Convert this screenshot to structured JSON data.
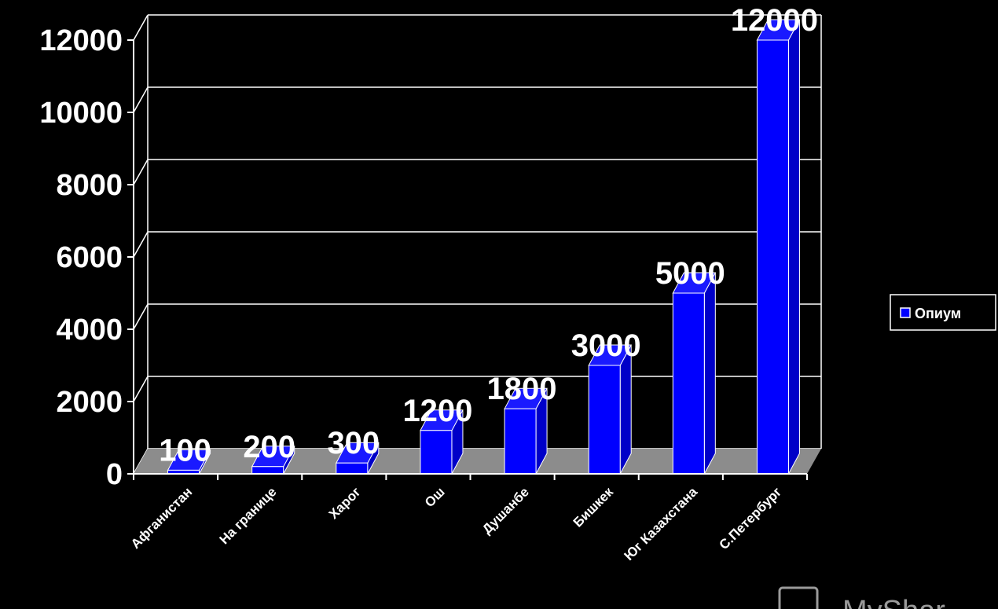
{
  "chart_data": {
    "type": "bar",
    "categories": [
      "Афганистан",
      "На границе",
      "Харог",
      "Ош",
      "Душанбе",
      "Бишкек",
      "Юг Казахстана",
      "С.Петербург"
    ],
    "series": [
      {
        "name": "Опиум",
        "values": [
          100,
          200,
          300,
          1200,
          1800,
          3000,
          5000,
          12000
        ]
      }
    ],
    "data_labels": [
      "100",
      "200",
      "300",
      "1200",
      "1800",
      "3000",
      "5000",
      "12000"
    ],
    "y_ticks": [
      "0",
      "2000",
      "4000",
      "6000",
      "8000",
      "10000",
      "12000"
    ],
    "ylim": [
      0,
      12000
    ],
    "grid": true,
    "legend_position": "right",
    "style": "3d-column",
    "colors": {
      "background": "#000000",
      "bar_front": "#0000ff",
      "bar_side": "#0000c8",
      "bar_top": "#1a1aff",
      "floor": "#8c8c8c",
      "grid": "#ffffff",
      "text": "#ffffff"
    }
  },
  "legend": {
    "label": "Опиум"
  },
  "watermark": {
    "text": "MyShar"
  }
}
